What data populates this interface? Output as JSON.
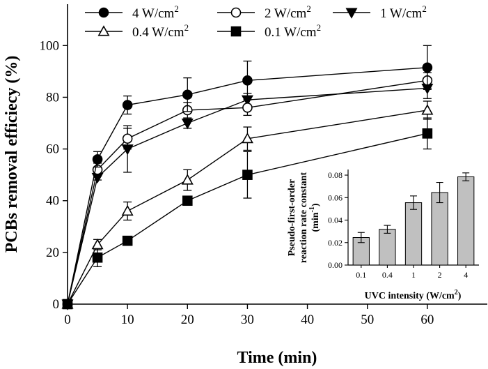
{
  "chart_data": [
    {
      "type": "line",
      "title": "",
      "xlabel": "Time (min)",
      "ylabel": "PCBs removal efficiecy (%)",
      "xlim": [
        0,
        70
      ],
      "ylim": [
        0,
        116
      ],
      "x_ticks": [
        "0",
        "10",
        "20",
        "30",
        "40",
        "50",
        "60"
      ],
      "y_ticks": [
        "0",
        "20",
        "40",
        "60",
        "80",
        "100"
      ],
      "x": [
        0,
        5,
        10,
        20,
        30,
        60
      ],
      "legend_position": "top",
      "series": [
        {
          "name": "4 W/cm",
          "marker": "circle-filled",
          "values": [
            0,
            56,
            77,
            81,
            86.5,
            91.5
          ],
          "errors": [
            0,
            3,
            3.5,
            6.5,
            7.5,
            8.5
          ]
        },
        {
          "name": "2 W/cm",
          "marker": "circle-open",
          "values": [
            0,
            52,
            64,
            75,
            76,
            86.5
          ],
          "errors": [
            0,
            2.5,
            4,
            3,
            3,
            3
          ]
        },
        {
          "name": "1 W/cm",
          "marker": "triangle-down-filled",
          "values": [
            0,
            49,
            60,
            70,
            79,
            83.5
          ],
          "errors": [
            0,
            1,
            9,
            2,
            2.5,
            4
          ]
        },
        {
          "name": "0.4 W/cm",
          "marker": "triangle-up-open",
          "values": [
            0,
            23,
            36,
            48,
            64,
            75
          ],
          "errors": [
            0,
            2,
            3.5,
            4,
            4.5,
            3.5
          ]
        },
        {
          "name": "0.1 W/cm",
          "marker": "square-filled",
          "values": [
            0,
            18,
            24.5,
            40,
            50,
            66
          ],
          "errors": [
            0,
            3.5,
            1.5,
            1.5,
            9,
            6
          ]
        }
      ],
      "legend_superscript": "2"
    },
    {
      "type": "bar",
      "title": "",
      "xlabel": "UVC intensity (W/cm",
      "xlabel_superscript": "2",
      "xlabel_suffix": ")",
      "ylabel_line1": "Pseudo-first-order",
      "ylabel_line2": "reaction rate constant",
      "ylabel_line3": "(min",
      "ylabel_line3_superscript": "-1",
      "ylabel_line3_suffix": ")",
      "categories": [
        "0.1",
        "0.4",
        "1",
        "2",
        "4"
      ],
      "values": [
        0.0245,
        0.0318,
        0.0555,
        0.0645,
        0.0785
      ],
      "errors": [
        0.0045,
        0.0035,
        0.006,
        0.009,
        0.0035
      ],
      "ylim": [
        0,
        0.085
      ],
      "y_ticks": [
        "0.00",
        "0.02",
        "0.04",
        "0.06",
        "0.08"
      ],
      "bar_color": "#c0c0c0"
    }
  ]
}
